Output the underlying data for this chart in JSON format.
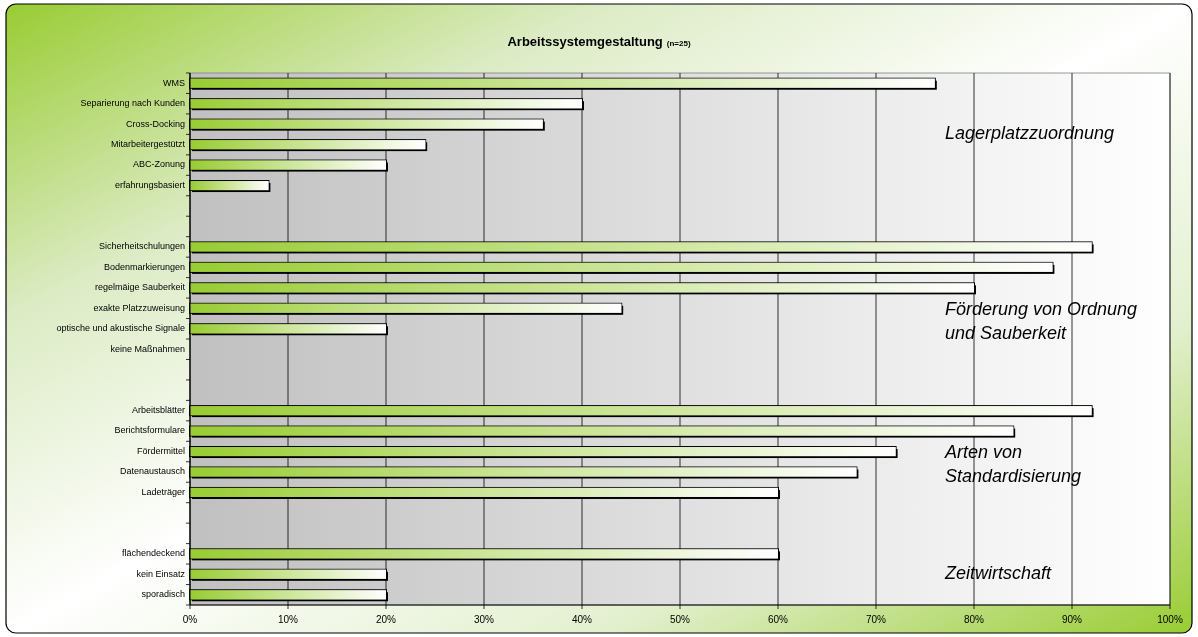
{
  "chart_data": {
    "type": "bar",
    "orientation": "horizontal",
    "title": "Arbeitssystemgestaltung",
    "subtitle": "(n=25)",
    "categories": [
      "WMS",
      "Separierung nach Kunden",
      "Cross-Docking",
      "Mitarbeitergestützt",
      "ABC-Zonung",
      "erfahrungsbasiert",
      null,
      null,
      "Sicherheitschulungen",
      "Bodenmarkierungen",
      "regelmäige Sauberkeit",
      "exakte Platzzuweisung",
      "optische und akustische Signale",
      "keine Maßnahmen",
      null,
      null,
      "Arbeitsblätter",
      "Berichtsformulare",
      "Fördermittel",
      "Datenaustausch",
      "Ladeträger",
      null,
      null,
      "flächendeckend",
      "kein Einsatz",
      "sporadisch"
    ],
    "values": [
      76,
      40,
      36,
      24,
      20,
      8,
      null,
      null,
      92,
      88,
      80,
      44,
      20,
      0,
      null,
      null,
      92,
      84,
      72,
      68,
      60,
      null,
      null,
      60,
      20,
      20
    ],
    "color": "#99cc33",
    "xlim": [
      0,
      100
    ],
    "xticks": [
      {
        "value": 0,
        "label": "0%"
      },
      {
        "value": 10,
        "label": "10%"
      },
      {
        "value": 20,
        "label": "20%"
      },
      {
        "value": 30,
        "label": "30%"
      },
      {
        "value": 40,
        "label": "40%"
      },
      {
        "value": 50,
        "label": "50%"
      },
      {
        "value": 60,
        "label": "60%"
      },
      {
        "value": 70,
        "label": "70%"
      },
      {
        "value": 80,
        "label": "80%"
      },
      {
        "value": 90,
        "label": "90%"
      },
      {
        "value": 100,
        "label": "100%"
      }
    ],
    "grid": "x",
    "annotations": [
      "Lagerplatzzuordnung",
      "Förderung von Ordnung\nund Sauberkeit",
      "Arten von\nStandardisierung",
      "Zeitwirtschaft"
    ]
  }
}
